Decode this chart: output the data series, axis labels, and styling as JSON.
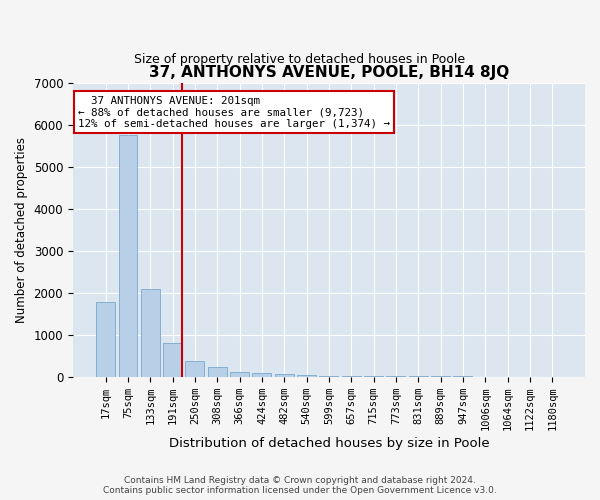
{
  "title": "37, ANTHONYS AVENUE, POOLE, BH14 8JQ",
  "subtitle": "Size of property relative to detached houses in Poole",
  "xlabel": "Distribution of detached houses by size in Poole",
  "ylabel": "Number of detached properties",
  "bar_color": "#b8cfe8",
  "bar_edge_color": "#6a9fc8",
  "background_color": "#dce6f0",
  "grid_color": "#ffffff",
  "categories": [
    "17sqm",
    "75sqm",
    "133sqm",
    "191sqm",
    "250sqm",
    "308sqm",
    "366sqm",
    "424sqm",
    "482sqm",
    "540sqm",
    "599sqm",
    "657sqm",
    "715sqm",
    "773sqm",
    "831sqm",
    "889sqm",
    "947sqm",
    "1006sqm",
    "1064sqm",
    "1122sqm",
    "1180sqm"
  ],
  "values": [
    1780,
    5750,
    2080,
    800,
    380,
    240,
    115,
    80,
    50,
    30,
    20,
    10,
    8,
    5,
    3,
    2,
    2,
    1,
    1,
    1,
    1
  ],
  "ylim": [
    0,
    7000
  ],
  "yticks": [
    0,
    1000,
    2000,
    3000,
    4000,
    5000,
    6000,
    7000
  ],
  "vline_color": "#cc0000",
  "annotation_text": "  37 ANTHONYS AVENUE: 201sqm\n← 88% of detached houses are smaller (9,723)\n12% of semi-detached houses are larger (1,374) →",
  "annotation_box_color": "#ffffff",
  "annotation_box_edge": "#cc0000",
  "footer_line1": "Contains HM Land Registry data © Crown copyright and database right 2024.",
  "footer_line2": "Contains public sector information licensed under the Open Government Licence v3.0."
}
